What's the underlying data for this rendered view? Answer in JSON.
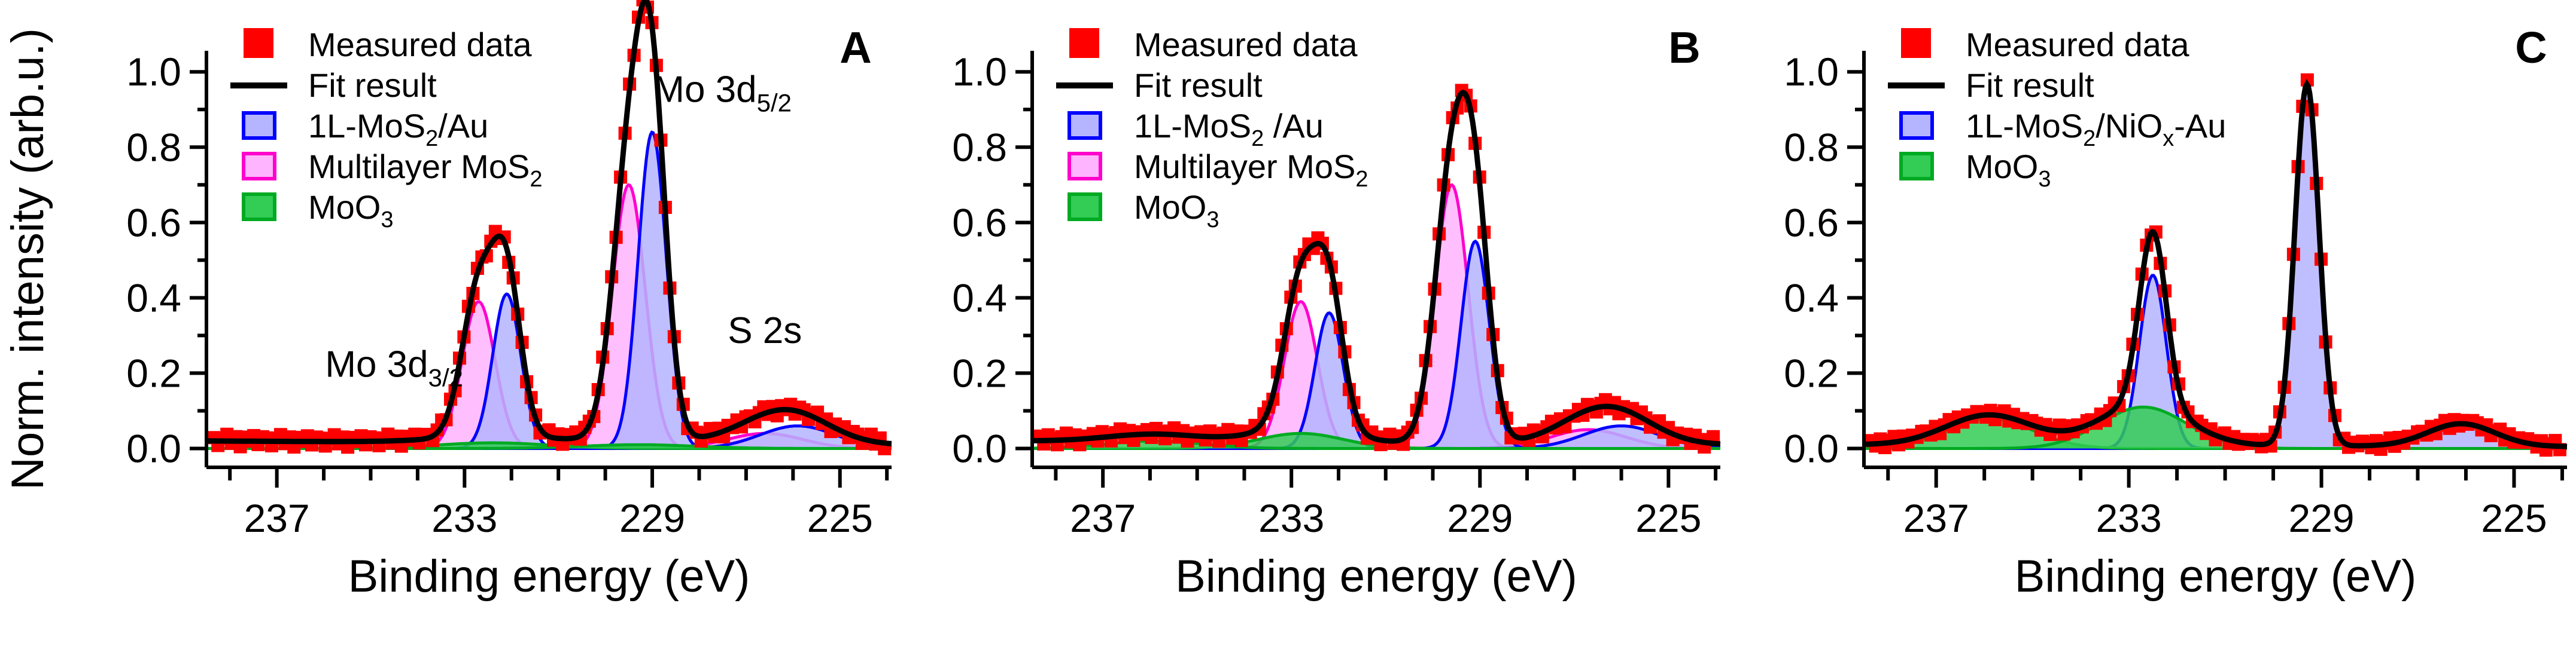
{
  "chart_data": [
    {
      "type": "line",
      "panel": "A",
      "xlabel": "Binding energy (eV)",
      "ylabel": "Norm. intensity (arb.u.)",
      "xlim": [
        238.5,
        223.9
      ],
      "ylim": [
        -0.05,
        1.04
      ],
      "xticks": [
        237,
        233,
        229,
        225
      ],
      "yticks": [
        0.0,
        0.2,
        0.4,
        0.6,
        0.8,
        1.0
      ],
      "grid": false,
      "legend": [
        {
          "key": "measured",
          "label": "Measured data",
          "sub": "",
          "post": "",
          "sub2": "",
          "post2": ""
        },
        {
          "key": "fit",
          "label": "Fit result",
          "sub": "",
          "post": "",
          "sub2": "",
          "post2": ""
        },
        {
          "key": "mono",
          "label": "1L-MoS",
          "sub": "2",
          "post": "/Au",
          "sub2": "",
          "post2": ""
        },
        {
          "key": "multi",
          "label": "Multilayer MoS",
          "sub": "2",
          "post": "",
          "sub2": "",
          "post2": ""
        },
        {
          "key": "moo3",
          "label": "MoO",
          "sub": "3",
          "post": "",
          "sub2": "",
          "post2": ""
        }
      ],
      "annotations": [
        {
          "text": "Mo 3d",
          "sub": "5/2",
          "x": 227.5,
          "y": 0.92
        },
        {
          "text": "Mo 3d",
          "sub": "3/2",
          "x": 234.5,
          "y": 0.19
        },
        {
          "text": "S 2s",
          "x": 226.6,
          "y": 0.28
        }
      ],
      "components": {
        "mono": [
          {
            "x0": 229.0,
            "h": 0.84,
            "w": 0.3
          },
          {
            "x0": 232.1,
            "h": 0.41,
            "w": 0.3
          },
          {
            "x0": 225.9,
            "h": 0.06,
            "w": 0.8
          }
        ],
        "multi": [
          {
            "x0": 229.5,
            "h": 0.7,
            "w": 0.35
          },
          {
            "x0": 232.7,
            "h": 0.39,
            "w": 0.35
          },
          {
            "x0": 226.6,
            "h": 0.04,
            "w": 0.8
          }
        ],
        "moo3": [
          {
            "x0": 232.4,
            "h": 0.015,
            "w": 1.2
          },
          {
            "x0": 229.3,
            "h": 0.01,
            "w": 1.2
          }
        ]
      },
      "baseline": {
        "left": 0.02,
        "right": 0.01
      },
      "measured_noise": [
        0.015,
        -0.02,
        0.012,
        0.03,
        -0.01,
        0.02,
        -0.025,
        0.018,
        0.0,
        0.025,
        -0.015,
        0.02
      ]
    },
    {
      "type": "line",
      "panel": "B",
      "xlabel": "Binding energy (eV)",
      "ylabel": "",
      "xlim": [
        238.5,
        223.9
      ],
      "ylim": [
        -0.05,
        1.04
      ],
      "xticks": [
        237,
        233,
        229,
        225
      ],
      "yticks": [
        0.0,
        0.2,
        0.4,
        0.6,
        0.8,
        1.0
      ],
      "grid": false,
      "legend": [
        {
          "key": "measured",
          "label": "Measured data",
          "sub": "",
          "post": "",
          "sub2": "",
          "post2": ""
        },
        {
          "key": "fit",
          "label": "Fit result",
          "sub": "",
          "post": "",
          "sub2": "",
          "post2": ""
        },
        {
          "key": "mono",
          "label": "1L-MoS",
          "sub": "2",
          "post": " /Au",
          "sub2": "",
          "post2": ""
        },
        {
          "key": "multi",
          "label": "Multilayer MoS",
          "sub": "2",
          "post": "",
          "sub2": "",
          "post2": ""
        },
        {
          "key": "moo3",
          "label": "MoO",
          "sub": "3",
          "post": "",
          "sub2": "",
          "post2": ""
        }
      ],
      "annotations": [],
      "components": {
        "mono": [
          {
            "x0": 229.1,
            "h": 0.55,
            "w": 0.3
          },
          {
            "x0": 232.2,
            "h": 0.36,
            "w": 0.3
          },
          {
            "x0": 226.0,
            "h": 0.06,
            "w": 0.8
          }
        ],
        "multi": [
          {
            "x0": 229.6,
            "h": 0.7,
            "w": 0.35
          },
          {
            "x0": 232.8,
            "h": 0.39,
            "w": 0.35
          },
          {
            "x0": 226.7,
            "h": 0.05,
            "w": 0.8
          }
        ],
        "moo3": [
          {
            "x0": 232.8,
            "h": 0.04,
            "w": 0.9
          },
          {
            "x0": 235.9,
            "h": 0.02,
            "w": 1.0
          }
        ]
      },
      "baseline": {
        "left": 0.02,
        "right": 0.01
      },
      "measured_noise": [
        0.02,
        -0.015,
        0.025,
        0.01,
        -0.02,
        0.015,
        0.03,
        -0.01,
        0.02,
        -0.025,
        0.012,
        0.0
      ]
    },
    {
      "type": "line",
      "panel": "C",
      "xlabel": "Binding energy (eV)",
      "ylabel": "",
      "xlim": [
        238.5,
        223.9
      ],
      "ylim": [
        -0.05,
        1.04
      ],
      "xticks": [
        237,
        233,
        229,
        225
      ],
      "yticks": [
        0.0,
        0.2,
        0.4,
        0.6,
        0.8,
        1.0
      ],
      "grid": false,
      "legend": [
        {
          "key": "measured",
          "label": "Measured data",
          "sub": "",
          "post": "",
          "sub2": "",
          "post2": ""
        },
        {
          "key": "fit",
          "label": "Fit result",
          "sub": "",
          "post": "",
          "sub2": "",
          "post2": ""
        },
        {
          "key": "mono",
          "label": "1L-MoS",
          "sub": "2",
          "post": "/NiO",
          "sub2": "x",
          "post2": "-Au"
        },
        {
          "key": "moo3",
          "label": "MoO",
          "sub": "3",
          "post": "",
          "sub2": "",
          "post2": ""
        }
      ],
      "annotations": [],
      "components": {
        "mono": [
          {
            "x0": 229.3,
            "h": 0.96,
            "w": 0.25
          },
          {
            "x0": 232.5,
            "h": 0.46,
            "w": 0.28
          },
          {
            "x0": 226.1,
            "h": 0.06,
            "w": 0.7
          }
        ],
        "multi": [],
        "moo3": [
          {
            "x0": 235.9,
            "h": 0.08,
            "w": 0.9
          },
          {
            "x0": 232.7,
            "h": 0.11,
            "w": 0.9
          }
        ]
      },
      "baseline": {
        "left": 0.01,
        "right": 0.005
      },
      "measured_noise": [
        0.015,
        -0.01,
        0.02,
        -0.02,
        0.01,
        0.025,
        -0.015,
        0.02,
        -0.01,
        0.015,
        0.0,
        0.02
      ]
    }
  ],
  "colors": {
    "measured": "#ff0000",
    "fit": "#000000",
    "mono_fill": "#b4b4ff",
    "mono_line": "#0000ff",
    "multi_fill": "#ffb4ff",
    "multi_line": "#ff00cc",
    "moo3_fill": "#33cc55",
    "moo3_line": "#00aa22",
    "zero_line": "#aaaaaa"
  }
}
